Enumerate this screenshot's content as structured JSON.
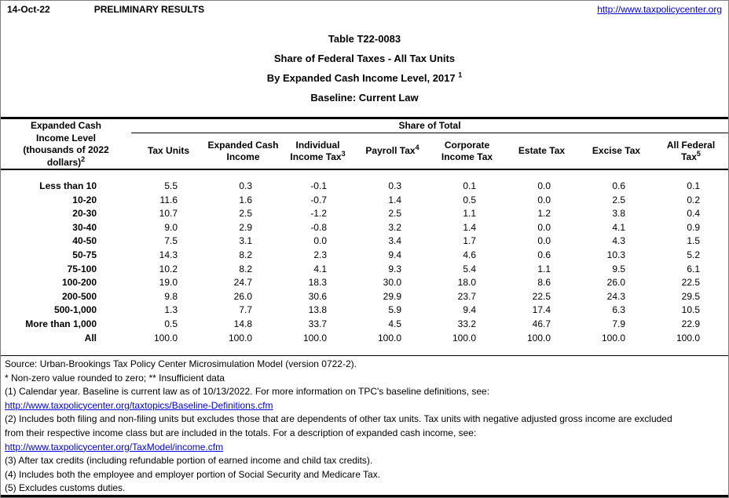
{
  "colors": {
    "link": "#0000ee",
    "text": "#000000",
    "rule": "#000000"
  },
  "header": {
    "date": "14-Oct-22",
    "preliminary": "PRELIMINARY RESULTS",
    "site_url": "http://www.taxpolicycenter.org"
  },
  "title": {
    "line1": "Table T22-0083",
    "line2": "Share of Federal Taxes - All Tax Units",
    "line3": "By Expanded Cash Income Level, 2017",
    "line3_sup": "1",
    "line4": "Baseline: Current Law"
  },
  "table": {
    "row_header": {
      "lines": [
        "Expanded Cash",
        "Income Level",
        "(thousands of 2022",
        "dollars)"
      ],
      "sup": "2"
    },
    "group_header": "Share of Total",
    "columns": [
      {
        "lines": [
          "Tax Units"
        ],
        "sup": ""
      },
      {
        "lines": [
          "Expanded Cash",
          "Income"
        ],
        "sup": ""
      },
      {
        "lines": [
          "Individual",
          "Income Tax"
        ],
        "sup": "3"
      },
      {
        "lines": [
          "Payroll Tax"
        ],
        "sup": "4"
      },
      {
        "lines": [
          "Corporate",
          "Income Tax"
        ],
        "sup": ""
      },
      {
        "lines": [
          "Estate Tax"
        ],
        "sup": ""
      },
      {
        "lines": [
          "Excise Tax"
        ],
        "sup": ""
      },
      {
        "lines": [
          "All Federal",
          "Tax"
        ],
        "sup": "5"
      }
    ],
    "rows": [
      {
        "label": "Less than 10",
        "values": [
          "5.5",
          "0.3",
          "-0.1",
          "0.3",
          "0.1",
          "0.0",
          "0.6",
          "0.1"
        ]
      },
      {
        "label": "10-20",
        "values": [
          "11.6",
          "1.6",
          "-0.7",
          "1.4",
          "0.5",
          "0.0",
          "2.5",
          "0.2"
        ]
      },
      {
        "label": "20-30",
        "values": [
          "10.7",
          "2.5",
          "-1.2",
          "2.5",
          "1.1",
          "1.2",
          "3.8",
          "0.4"
        ]
      },
      {
        "label": "30-40",
        "values": [
          "9.0",
          "2.9",
          "-0.8",
          "3.2",
          "1.4",
          "0.0",
          "4.1",
          "0.9"
        ]
      },
      {
        "label": "40-50",
        "values": [
          "7.5",
          "3.1",
          "0.0",
          "3.4",
          "1.7",
          "0.0",
          "4.3",
          "1.5"
        ]
      },
      {
        "label": "50-75",
        "values": [
          "14.3",
          "8.2",
          "2.3",
          "9.4",
          "4.6",
          "0.6",
          "10.3",
          "5.2"
        ]
      },
      {
        "label": "75-100",
        "values": [
          "10.2",
          "8.2",
          "4.1",
          "9.3",
          "5.4",
          "1.1",
          "9.5",
          "6.1"
        ]
      },
      {
        "label": "100-200",
        "values": [
          "19.0",
          "24.7",
          "18.3",
          "30.0",
          "18.0",
          "8.6",
          "26.0",
          "22.5"
        ]
      },
      {
        "label": "200-500",
        "values": [
          "9.8",
          "26.0",
          "30.6",
          "29.9",
          "23.7",
          "22.5",
          "24.3",
          "29.5"
        ]
      },
      {
        "label": "500-1,000",
        "values": [
          "1.3",
          "7.7",
          "13.8",
          "5.9",
          "9.4",
          "17.4",
          "6.3",
          "10.5"
        ]
      },
      {
        "label": "More than 1,000",
        "values": [
          "0.5",
          "14.8",
          "33.7",
          "4.5",
          "33.2",
          "46.7",
          "7.9",
          "22.9"
        ]
      },
      {
        "label": "All",
        "values": [
          "100.0",
          "100.0",
          "100.0",
          "100.0",
          "100.0",
          "100.0",
          "100.0",
          "100.0"
        ]
      }
    ]
  },
  "footnotes": [
    {
      "kind": "text",
      "text": "Source: Urban-Brookings Tax Policy Center Microsimulation Model (version 0722-2)."
    },
    {
      "kind": "text",
      "text": "* Non-zero value rounded to zero; ** Insufficient data"
    },
    {
      "kind": "text",
      "text": "(1) Calendar year. Baseline is current law as of 10/13/2022. For more information on TPC's baseline definitions, see:"
    },
    {
      "kind": "link",
      "text": "http://www.taxpolicycenter.org/taxtopics/Baseline-Definitions.cfm"
    },
    {
      "kind": "text",
      "text": "(2) Includes both filing and non-filing units but excludes those that are dependents of other tax units. Tax units with negative adjusted gross income are excluded"
    },
    {
      "kind": "text",
      "text": "from their respective income class but are included in the totals. For a description of expanded cash income, see:"
    },
    {
      "kind": "link",
      "text": "http://www.taxpolicycenter.org/TaxModel/income.cfm"
    },
    {
      "kind": "text",
      "text": "(3) After tax credits (including refundable portion of earned income and child tax credits)."
    },
    {
      "kind": "text",
      "text": "(4) Includes both the employee and employer portion of Social Security and Medicare Tax."
    },
    {
      "kind": "text",
      "text": "(5) Excludes customs duties."
    }
  ]
}
